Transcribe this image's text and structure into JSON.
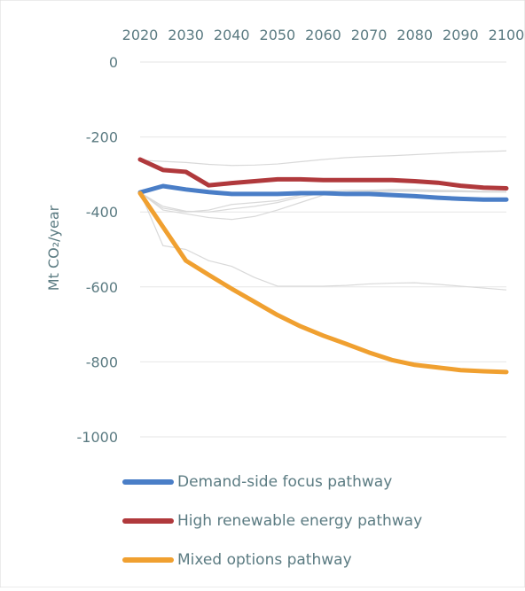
{
  "chart_data": {
    "type": "line",
    "title": "",
    "xlabel": "",
    "ylabel": "Mt CO₂/year",
    "x": [
      2020,
      2025,
      2030,
      2035,
      2040,
      2045,
      2050,
      2055,
      2060,
      2065,
      2070,
      2075,
      2080,
      2085,
      2090,
      2095,
      2100
    ],
    "x_ticks": [
      "2020",
      "2030",
      "2040",
      "2050",
      "2060",
      "2070",
      "2080",
      "2090",
      "2100"
    ],
    "y_ticks": [
      "0",
      "-200",
      "-400",
      "-600",
      "-800",
      "-1000"
    ],
    "xlim": [
      2020,
      2100
    ],
    "ylim": [
      -1000,
      0
    ],
    "x_axis_position": "top",
    "grid": true,
    "legend_position": "bottom",
    "series": [
      {
        "name": "Demand-side focus pathway",
        "color": "#4a7ec7",
        "values": [
          -348,
          -331,
          -340,
          -347,
          -352,
          -352,
          -352,
          -350,
          -350,
          -352,
          -352,
          -355,
          -358,
          -362,
          -365,
          -367,
          -367
        ]
      },
      {
        "name": "High renewable energy pathway",
        "color": "#b0393c",
        "values": [
          -260,
          -288,
          -293,
          -329,
          -323,
          -318,
          -313,
          -313,
          -315,
          -315,
          -315,
          -315,
          -318,
          -322,
          -330,
          -335,
          -337
        ]
      },
      {
        "name": "Mixed options pathway",
        "color": "#f0a030",
        "values": [
          -350,
          -440,
          -530,
          -568,
          -605,
          -640,
          -675,
          -705,
          -730,
          -752,
          -775,
          -795,
          -808,
          -815,
          -822,
          -825,
          -827
        ]
      }
    ],
    "background_series": [
      {
        "color": "#d9d9d9",
        "values": [
          -262,
          -265,
          -268,
          -273,
          -276,
          -275,
          -272,
          -266,
          -260,
          -255,
          -252,
          -250,
          -247,
          -244,
          -241,
          -239,
          -237
        ]
      },
      {
        "color": "#d9d9d9",
        "values": [
          -348,
          -490,
          -500,
          -530,
          -545,
          -575,
          -598,
          -598,
          -598,
          -596,
          -592,
          -590,
          -589,
          -593,
          -598,
          -603,
          -608
        ]
      },
      {
        "color": "#d9d9d9",
        "values": [
          -348,
          -390,
          -400,
          -395,
          -380,
          -375,
          -370,
          -355,
          -345,
          -342,
          -342,
          -340,
          -340,
          -342,
          -343,
          -345,
          -345
        ]
      },
      {
        "color": "#d9d9d9",
        "values": [
          -348,
          -395,
          -405,
          -415,
          -420,
          -412,
          -395,
          -375,
          -355,
          -348,
          -347,
          -345,
          -345,
          -346,
          -346,
          -347,
          -347
        ]
      },
      {
        "color": "#d9d9d9",
        "values": [
          -348,
          -385,
          -398,
          -400,
          -392,
          -385,
          -375,
          -360,
          -350,
          -346,
          -344,
          -343,
          -343,
          -344,
          -345,
          -345,
          -346
        ]
      }
    ]
  }
}
